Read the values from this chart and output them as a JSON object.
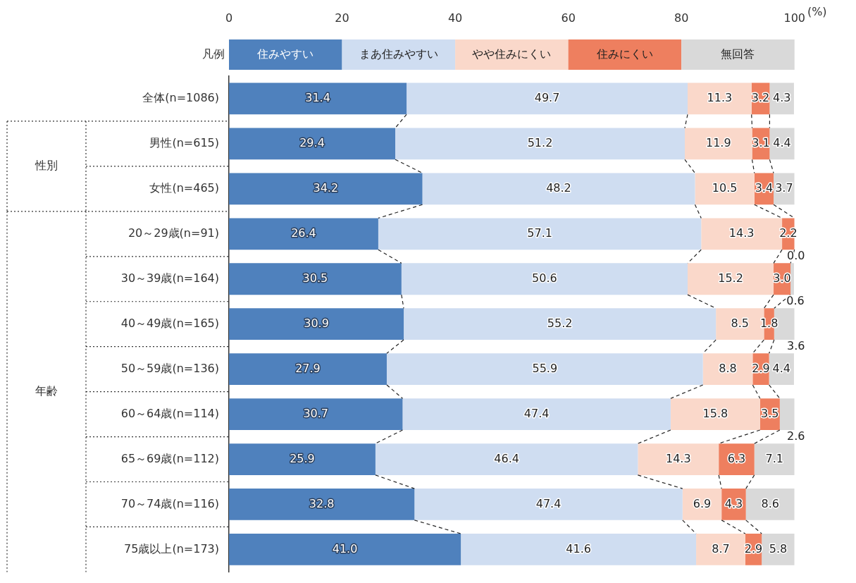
{
  "chart_data": {
    "type": "bar",
    "orientation": "horizontal",
    "stacked": true,
    "legend": "top",
    "legend_title": "凡例",
    "xlabel": "(%)",
    "xlim": [
      0,
      100
    ],
    "xticks": [
      0,
      20,
      40,
      60,
      80,
      100
    ],
    "grid": false,
    "categories": [
      "全体(n=1086)",
      "男性(n=615)",
      "女性(n=465)",
      "20～29歳(n=91)",
      "30～39歳(n=164)",
      "40～49歳(n=165)",
      "50～59歳(n=136)",
      "60～64歳(n=114)",
      "65～69歳(n=112)",
      "70～74歳(n=116)",
      "75歳以上(n=173)"
    ],
    "annotations": [
      "性別",
      "年齢"
    ],
    "series": [
      {
        "name": "住みやすい",
        "color": "#4f81bd",
        "values": [
          31.4,
          29.4,
          34.2,
          26.4,
          30.5,
          30.9,
          27.9,
          30.7,
          25.9,
          32.8,
          41.0
        ],
        "value_labels": [
          "31.4",
          "29.4",
          "34.2",
          "26.4",
          "30.5",
          "30.9",
          "27.9",
          "30.7",
          "25.9",
          "32.8",
          "41.0"
        ]
      },
      {
        "name": "まあ住みやすい",
        "color": "#cfddf1",
        "values": [
          49.7,
          51.2,
          48.2,
          57.1,
          50.6,
          55.2,
          55.9,
          47.4,
          46.4,
          47.4,
          41.6
        ],
        "value_labels": [
          "49.7",
          "51.2",
          "48.2",
          "57.1",
          "50.6",
          "55.2",
          "55.9",
          "47.4",
          "46.4",
          "47.4",
          "41.6"
        ]
      },
      {
        "name": "やや住みにくい",
        "color": "#fad8ca",
        "values": [
          11.3,
          11.9,
          10.5,
          14.3,
          15.2,
          8.5,
          8.8,
          15.8,
          14.3,
          6.9,
          8.7
        ],
        "value_labels": [
          "11.3",
          "11.9",
          "10.5",
          "14.3",
          "15.2",
          "8.5",
          "8.8",
          "15.8",
          "14.3",
          "6.9",
          "8.7"
        ]
      },
      {
        "name": "住みにくい",
        "color": "#ee7f5f",
        "values": [
          3.2,
          3.1,
          3.4,
          2.2,
          3.0,
          1.8,
          2.9,
          3.5,
          6.3,
          4.3,
          2.9
        ],
        "value_labels": [
          "3.2",
          "3.1",
          "3.4",
          "2.2",
          "3.0",
          "1.8",
          "2.9",
          "3.5",
          "6.3",
          "4.3",
          "2.9"
        ]
      },
      {
        "name": "無回答",
        "color": "#d9d9d9",
        "values": [
          4.3,
          4.4,
          3.7,
          0.0,
          0.6,
          3.6,
          4.4,
          2.6,
          7.1,
          8.6,
          5.8
        ],
        "value_labels": [
          "4.3",
          "4.4",
          "3.7",
          "0.0",
          "0.6",
          "3.6",
          "4.4",
          "2.6",
          "7.1",
          "8.6",
          "5.8"
        ]
      }
    ]
  }
}
